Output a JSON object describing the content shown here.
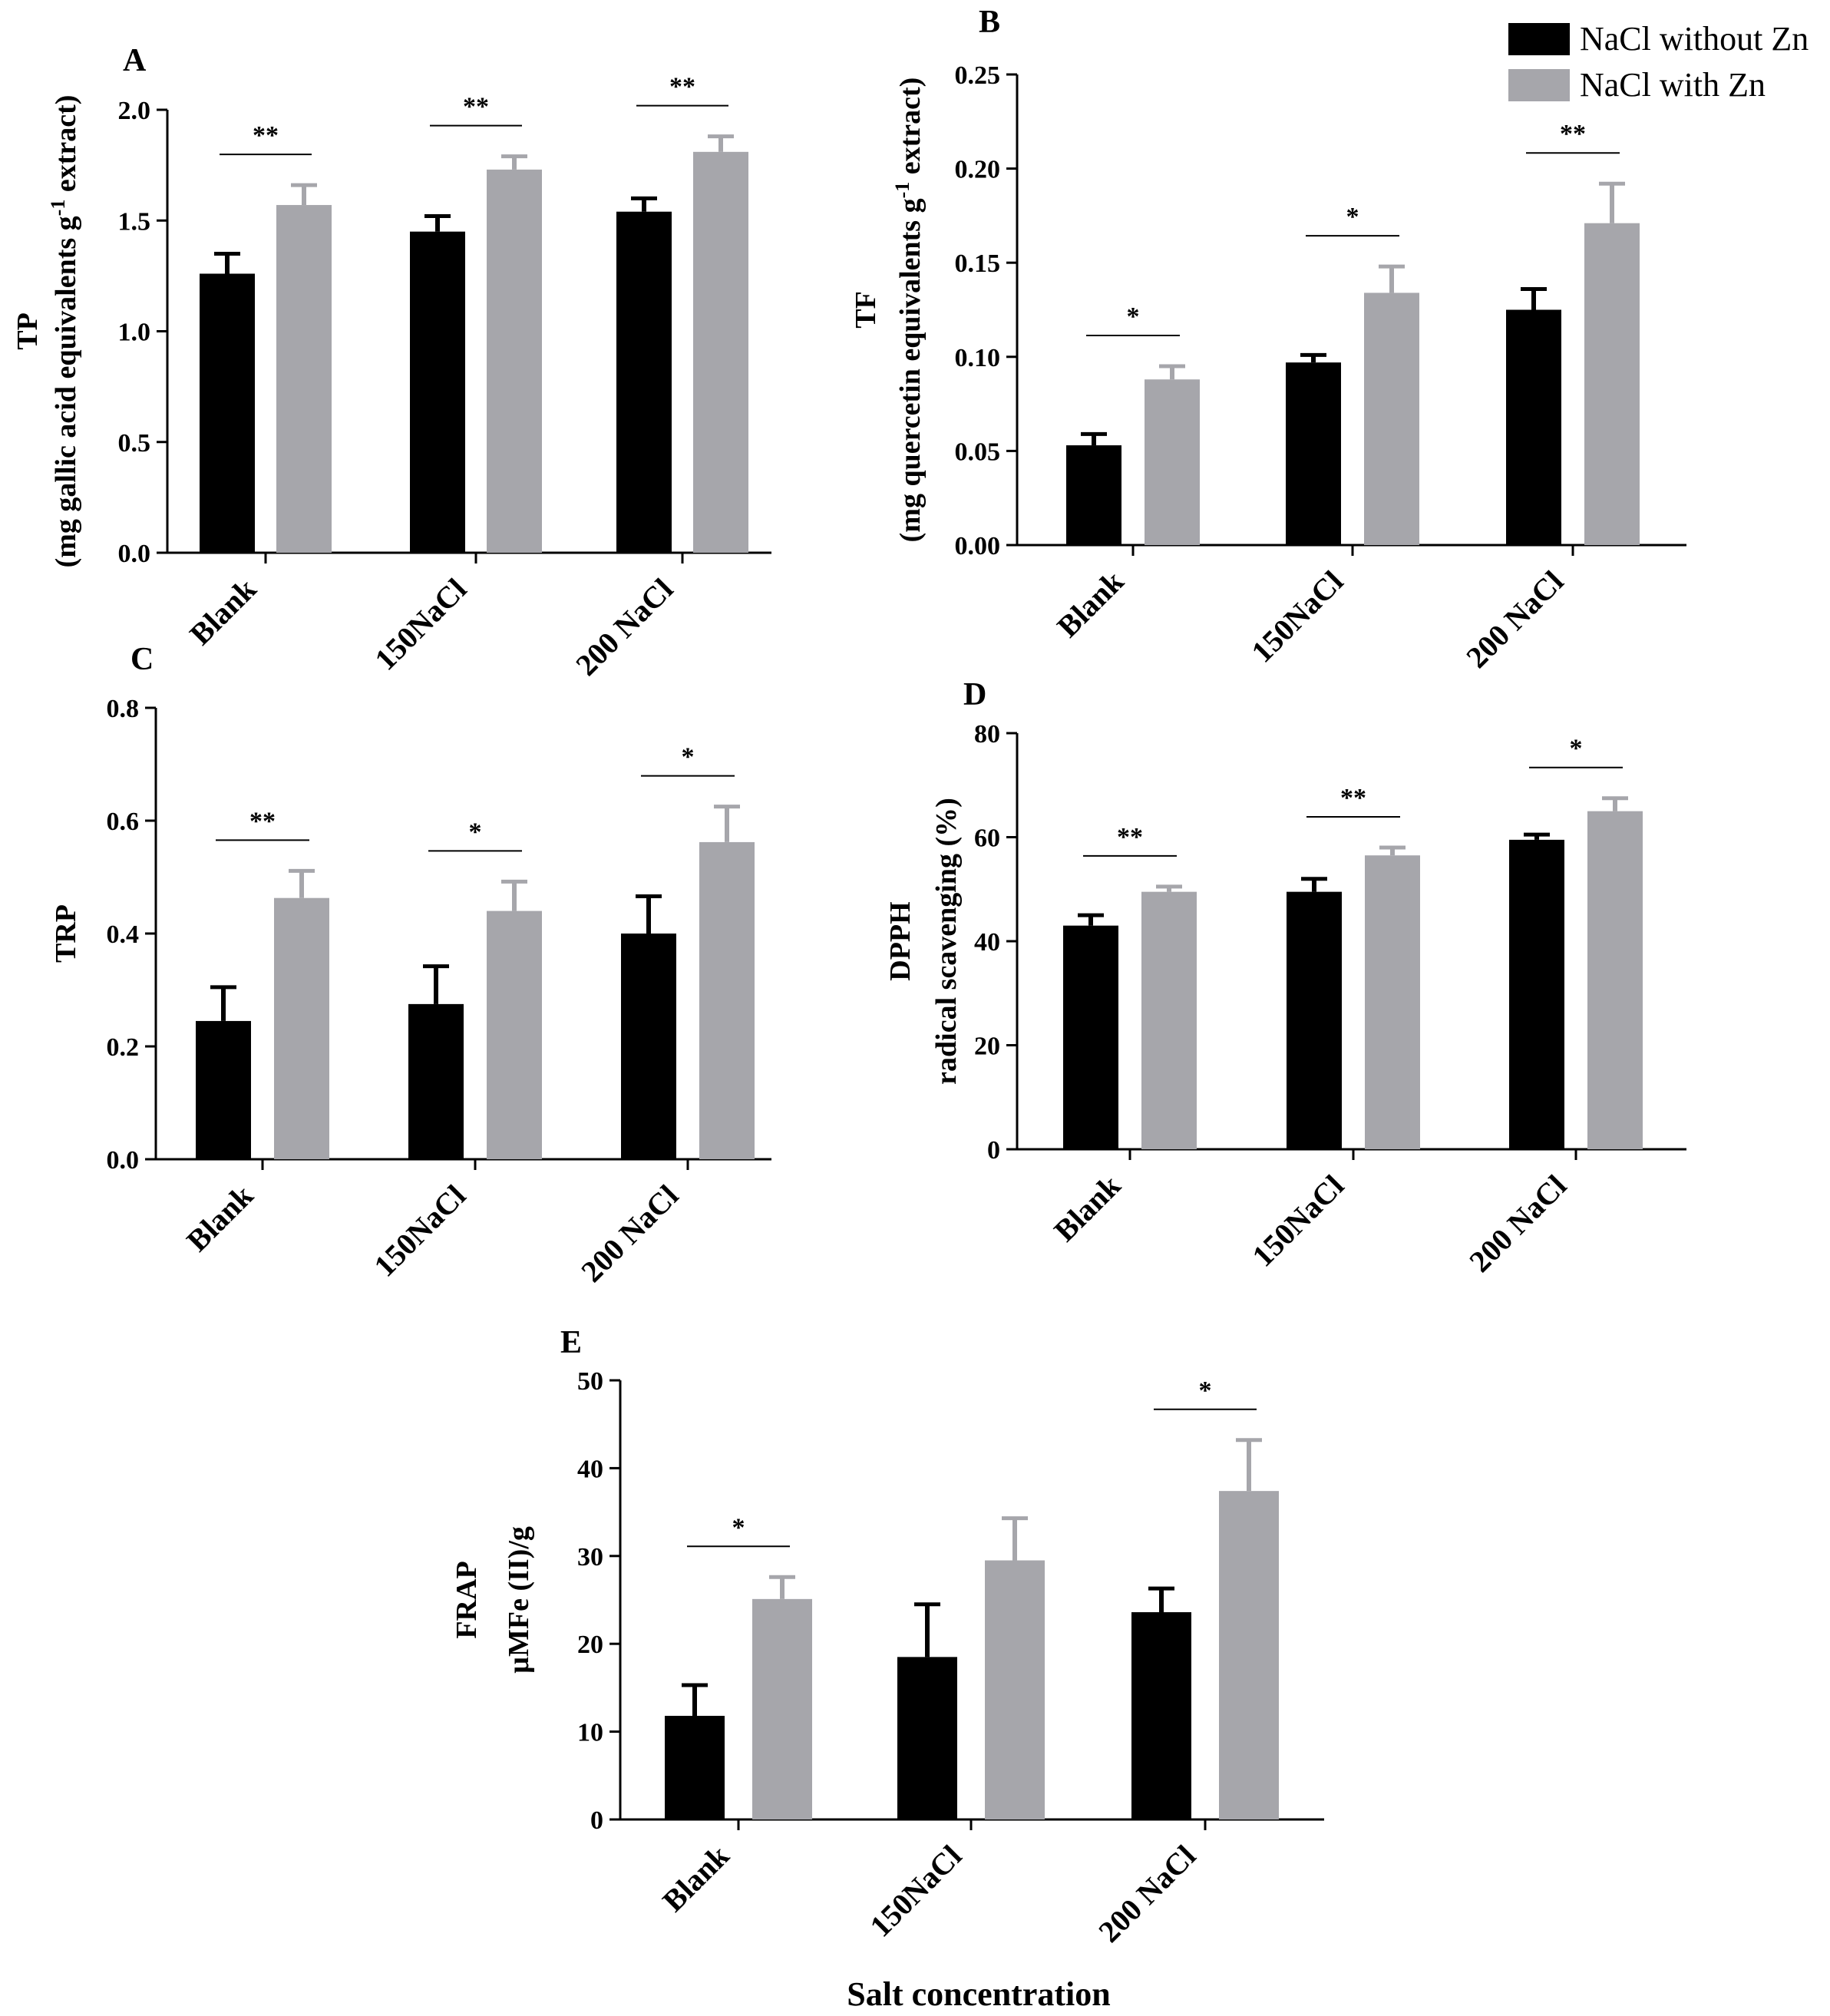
{
  "legend": [
    {
      "label": "NaCl without Zn",
      "color": "#000000"
    },
    {
      "label": "NaCl  with Zn",
      "color": "#a6a6ab"
    }
  ],
  "x_axis_title": "Salt concentration",
  "chart_data": [
    {
      "panel": "A",
      "type": "bar",
      "ylabel_lines": [
        "TP",
        "(mg gallic acid equivalents g",
        "-1",
        " extract)"
      ],
      "categories": [
        "Blank",
        "150NaCl",
        "200 NaCl"
      ],
      "series": [
        {
          "name": "NaCl without Zn",
          "values": [
            1.26,
            1.45,
            1.54
          ],
          "errors": [
            0.09,
            0.07,
            0.06
          ]
        },
        {
          "name": "NaCl  with Zn",
          "values": [
            1.57,
            1.73,
            1.81
          ],
          "errors": [
            0.09,
            0.06,
            0.07
          ]
        }
      ],
      "ylim": [
        0,
        2.0
      ],
      "yticks": [
        "0.0",
        "0.5",
        "1.0",
        "1.5",
        "2.0"
      ],
      "significance": [
        "**",
        "**",
        "**"
      ]
    },
    {
      "panel": "B",
      "type": "bar",
      "ylabel_lines": [
        "TF",
        "(mg quercetin equivalents g",
        "-1",
        " extract)"
      ],
      "categories": [
        "Blank",
        "150NaCl",
        "200 NaCl"
      ],
      "series": [
        {
          "name": "NaCl without Zn",
          "values": [
            0.053,
            0.097,
            0.125
          ],
          "errors": [
            0.006,
            0.004,
            0.011
          ]
        },
        {
          "name": "NaCl  with Zn",
          "values": [
            0.088,
            0.134,
            0.171
          ],
          "errors": [
            0.007,
            0.014,
            0.021
          ]
        }
      ],
      "ylim": [
        0,
        0.25
      ],
      "yticks": [
        "0.00",
        "0.05",
        "0.10",
        "0.15",
        "0.20",
        "0.25"
      ],
      "significance": [
        "*",
        "*",
        "**"
      ]
    },
    {
      "panel": "C",
      "type": "bar",
      "ylabel_lines": [
        "TRP"
      ],
      "categories": [
        "Blank",
        "150NaCl",
        "200 NaCl"
      ],
      "series": [
        {
          "name": "NaCl without Zn",
          "values": [
            0.245,
            0.275,
            0.4
          ],
          "errors": [
            0.06,
            0.067,
            0.066
          ]
        },
        {
          "name": "NaCl  with Zn",
          "values": [
            0.463,
            0.44,
            0.562
          ],
          "errors": [
            0.048,
            0.052,
            0.063
          ]
        }
      ],
      "ylim": [
        0,
        0.8
      ],
      "yticks": [
        "0.0",
        "0.2",
        "0.4",
        "0.6",
        "0.8"
      ],
      "significance": [
        "**",
        "*",
        "*"
      ]
    },
    {
      "panel": "D",
      "type": "bar",
      "ylabel_lines": [
        "DPPH",
        "radical scavenging (%)"
      ],
      "categories": [
        "Blank",
        "150NaCl",
        "200 NaCl"
      ],
      "series": [
        {
          "name": "NaCl without Zn",
          "values": [
            43,
            49.5,
            59.5
          ],
          "errors": [
            2,
            2.5,
            1
          ]
        },
        {
          "name": "NaCl  with Zn",
          "values": [
            49.5,
            56.5,
            65
          ],
          "errors": [
            1,
            1.5,
            2.5
          ]
        }
      ],
      "ylim": [
        0,
        80
      ],
      "yticks": [
        "0",
        "20",
        "40",
        "60",
        "80"
      ],
      "significance": [
        "**",
        "**",
        "*"
      ]
    },
    {
      "panel": "E",
      "type": "bar",
      "ylabel_lines": [
        "FRAP",
        "µMFe (II)/g"
      ],
      "categories": [
        "Blank",
        "150NaCl",
        "200 NaCl"
      ],
      "series": [
        {
          "name": "NaCl without Zn",
          "values": [
            11.8,
            18.5,
            23.6
          ],
          "errors": [
            3.5,
            6,
            2.7
          ]
        },
        {
          "name": "NaCl  with Zn",
          "values": [
            25.1,
            29.5,
            37.4
          ],
          "errors": [
            2.5,
            4.8,
            5.8
          ]
        }
      ],
      "ylim": [
        0,
        50
      ],
      "yticks": [
        "0",
        "10",
        "20",
        "30",
        "40",
        "50"
      ],
      "significance": [
        "*",
        "",
        "*"
      ]
    }
  ]
}
